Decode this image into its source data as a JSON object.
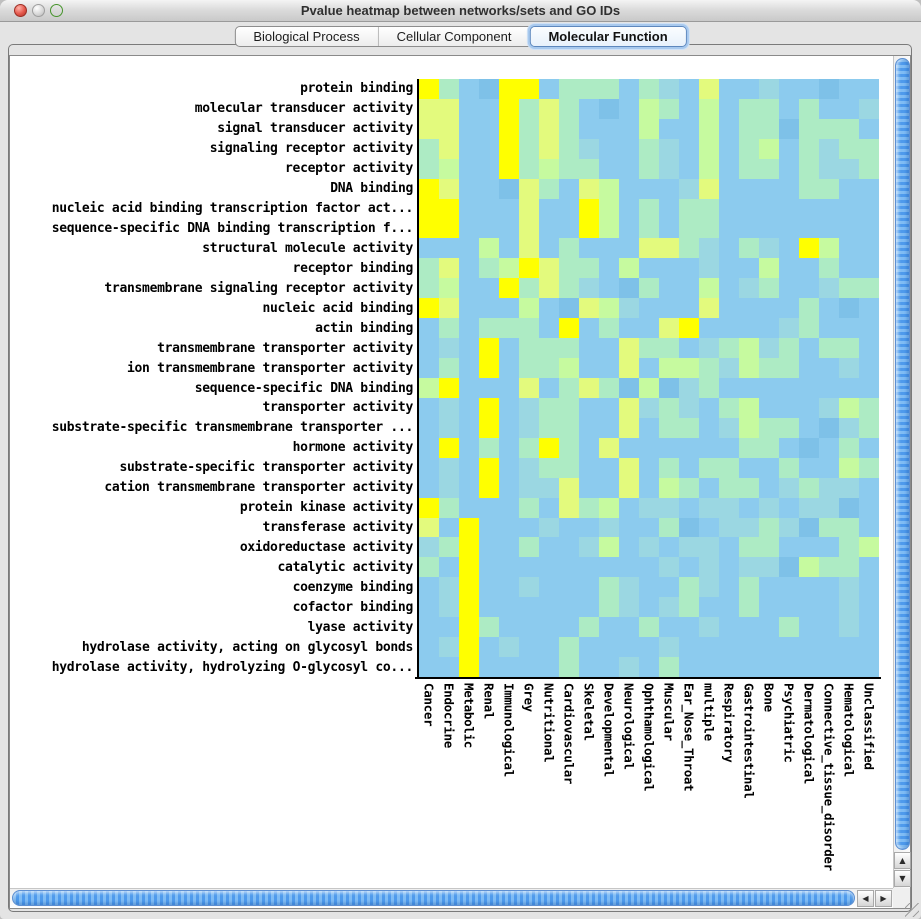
{
  "window": {
    "title": "Pvalue heatmap between networks/sets and GO IDs"
  },
  "tabs": [
    {
      "label": "Biological Process",
      "selected": false
    },
    {
      "label": "Cellular Component",
      "selected": false
    },
    {
      "label": "Molecular Function",
      "selected": true
    }
  ],
  "icons": {
    "scroll_up": "▲",
    "scroll_down": "▼",
    "scroll_left": "◀",
    "scroll_right": "▶"
  },
  "chart_data": {
    "type": "heatmap",
    "title": "Pvalue heatmap between networks/sets and GO IDs",
    "rows": [
      "protein binding",
      "molecular transducer activity",
      "signal transducer activity",
      "signaling receptor activity",
      "receptor activity",
      "DNA binding",
      "nucleic acid binding transcription factor act...",
      "sequence-specific DNA binding transcription f...",
      "structural molecule activity",
      "receptor binding",
      "transmembrane signaling receptor activity",
      "nucleic acid binding",
      "actin binding",
      "transmembrane transporter activity",
      "ion transmembrane transporter activity",
      "sequence-specific DNA binding",
      "transporter activity",
      "substrate-specific transmembrane transporter ...",
      "hormone activity",
      "substrate-specific transporter activity",
      "cation transmembrane transporter activity",
      "protein kinase activity",
      "transferase activity",
      "oxidoreductase activity",
      "catalytic activity",
      "coenzyme binding",
      "cofactor binding",
      "lyase activity",
      "hydrolase activity, acting on glycosyl bonds",
      "hydrolase activity, hydrolyzing O-glycosyl co..."
    ],
    "columns": [
      "Cancer",
      "Endocrine",
      "Metabolic",
      "Renal",
      "Immunological",
      "Grey",
      "Nutritional",
      "Cardiovascular",
      "Skeletal",
      "Developmental",
      "Neurological",
      "Ophthamological",
      "Muscular",
      "Ear_Nose_Throat",
      "multiple",
      "Respiratory",
      "Gastrointestinal",
      "Bone",
      "Psychiatric",
      "Dermatological",
      "Connective_tissue_disorder",
      "Hematological",
      "Unclassified"
    ],
    "palette": {
      "Y": "#FFFF00",
      "y": "#E3FA7D",
      "g": "#C6FA9F",
      "t": "#ADEBC4",
      "p": "#9BD7E2",
      "b": "#8CCBEE",
      "B": "#7EC1E8"
    },
    "cells": [
      "YtbBYYbtttbtpbybbpbbBbb",
      "yybbYtytbBbgtbgbttbtbbp",
      "yybbYtytbbbgbbgbttBtttb",
      "tybbYtytpbbtpbgbtgbtptt",
      "tgbbYtgttbbtpbgbttbtppt",
      "YybbBytbygbbbpybbbbttbb",
      "YYbbbybbYgbtbttbbbbbbbb",
      "YYbbbybbYgbtbttbbbbbbbb",
      "bbbgbybtbbbyytpbtpbYgbb",
      "tybtgYyttbgbbbpbbgbbtbb",
      "tgbbYtytpbBtbbgbptbbptt",
      "YybbbgbBygpbbbybbbbtbBb",
      "btbtttbYbtbbyYbbbbptbbb",
      "bpbYbtttbbyttbptgptbttb",
      "btbYbttgbbybggtpgttbbpb",
      "gYbbbybtytBgBptbbbbbbbb",
      "bpbYbpttbbyptpbtgbbbpgt",
      "bpbYbpttbbybttbpgttbBpt",
      "bYbtbtYtbybbbbbbttbBbtb",
      "bpbYbpttbbybtbttbbtbbgt",
      "bpbYbppybbybgtbttbptppb",
      "YtbbbtbytgbppbppbpbppBb",
      "ybYbbbpbbpbbtBbpptpBttb",
      "ptYbbtbbpgbpbppbttbbbtg",
      "tbYbbbbbbbbbpbpbppBgttb",
      "bpYbbpbbbtpbbtpbtbbbbpb",
      "bpYbbbbbbtpbptbbtbbbbpb",
      "bbYtbbbbtbbtbbpbbbtbbpb",
      "bpYbpbbtbbbbpbbbbbbbbbb",
      "bbYbbbbtbbpbtbbbbbbbbbb"
    ]
  }
}
